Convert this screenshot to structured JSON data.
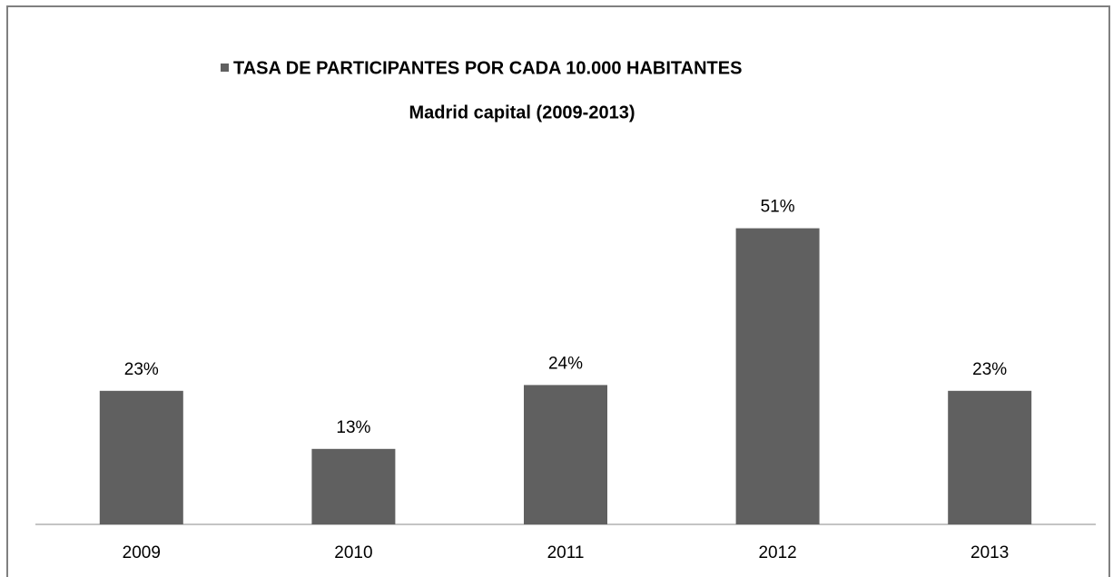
{
  "chart_data": {
    "type": "bar",
    "title": "Madrid  capital (2009-2013)",
    "categories": [
      "2009",
      "2010",
      "2011",
      "2012",
      "2013"
    ],
    "series": [
      {
        "name": "TASA DE PARTICIPANTES POR CADA 10.000 HABITANTES",
        "color": "#606060",
        "values": [
          23,
          13,
          24,
          51,
          23
        ],
        "value_labels": [
          "23%",
          "13%",
          "24%",
          "51%",
          "23%"
        ]
      }
    ]
  }
}
